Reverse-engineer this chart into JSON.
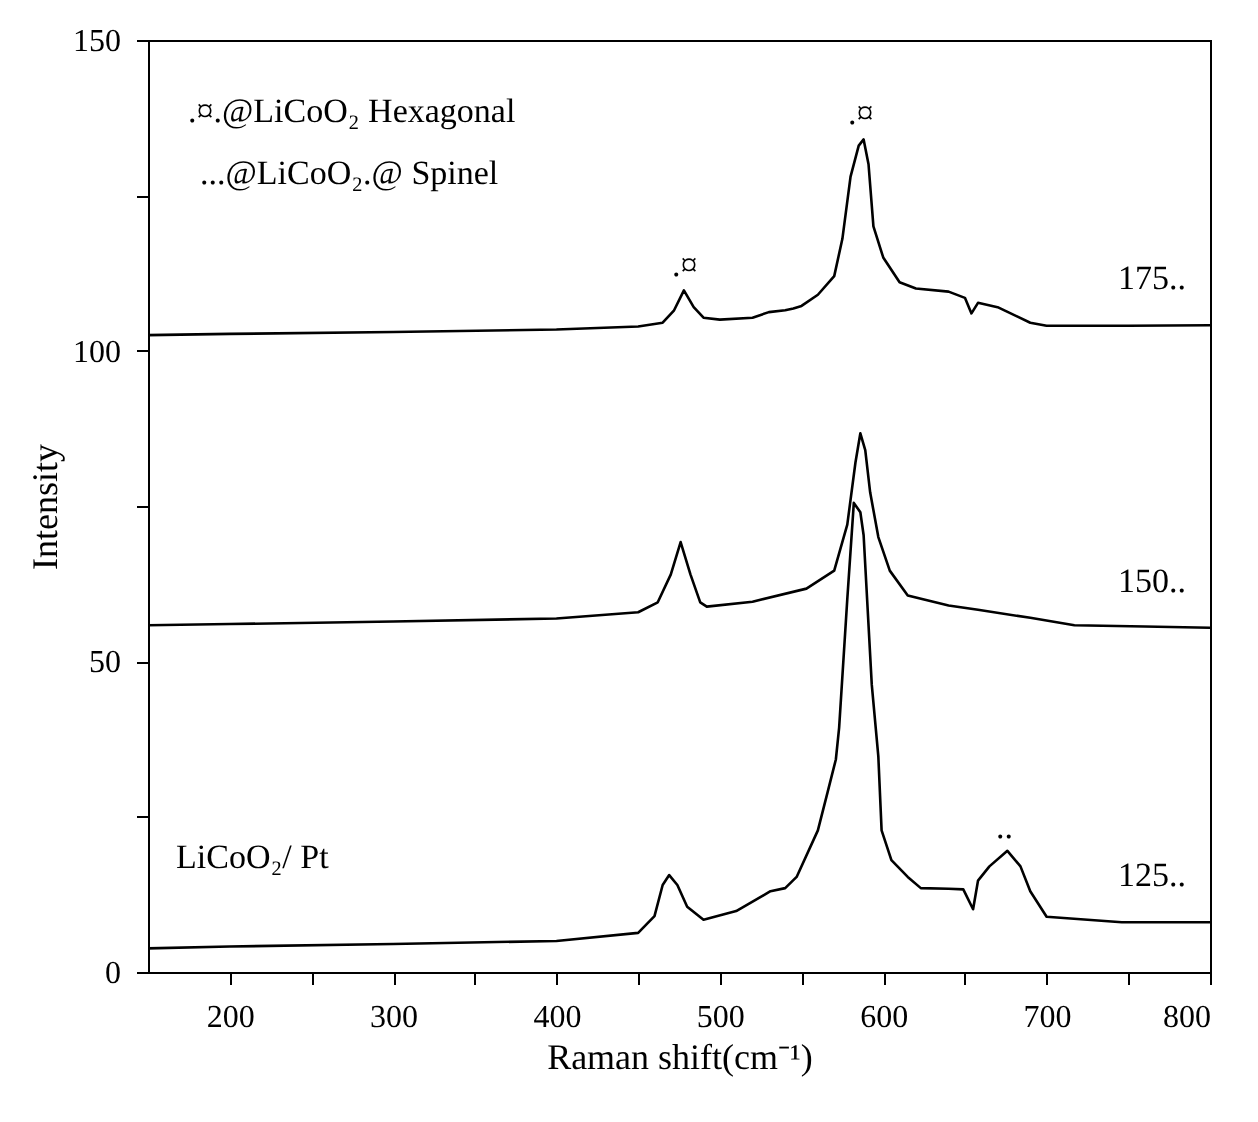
{
  "chart_data": {
    "type": "line",
    "xlabel": "Raman shift(cm⁻¹)",
    "ylabel": "Intensity",
    "xlim": [
      150,
      800
    ],
    "ylim": [
      0,
      150
    ],
    "xticks": [
      200,
      {
        "value": 250,
        "label": null
      },
      300,
      {
        "value": 350,
        "label": null
      },
      400,
      {
        "value": 450,
        "label": null
      },
      500,
      {
        "value": 550,
        "label": null
      },
      600,
      {
        "value": 650,
        "label": null
      },
      700,
      {
        "value": 750,
        "label": null
      },
      800
    ],
    "yticks": [
      0,
      {
        "value": 25,
        "label": null
      },
      50,
      {
        "value": 75,
        "label": null
      },
      100,
      {
        "value": 125,
        "label": null
      },
      150
    ],
    "series": [
      {
        "name": "175..",
        "color": "#000000",
        "x": [
          150,
          200,
          300,
          400,
          450,
          465,
          472,
          478,
          484,
          490,
          500,
          520,
          530,
          540,
          545,
          550,
          560,
          570,
          575,
          580,
          585,
          588,
          591,
          594,
          600,
          610,
          620,
          640,
          650,
          654,
          658,
          670,
          690,
          700,
          750,
          800
        ],
        "values": [
          102.5,
          102.7,
          103,
          103.4,
          103.9,
          104.5,
          106.5,
          109.7,
          107,
          105.3,
          105,
          105.3,
          106.2,
          106.5,
          106.8,
          107.2,
          109,
          112,
          118,
          128,
          133,
          134,
          130,
          120,
          115,
          111,
          110,
          109.5,
          108.5,
          106,
          107.7,
          107,
          104.5,
          104,
          104,
          104.1
        ]
      },
      {
        "name": "150..",
        "color": "#000000",
        "x": [
          150,
          200,
          300,
          400,
          450,
          462,
          470,
          476,
          482,
          488,
          492,
          520,
          553,
          570,
          578,
          583,
          586,
          589,
          592,
          597,
          604,
          615,
          640,
          658,
          690,
          717,
          760,
          800
        ],
        "values": [
          55.8,
          56,
          56.4,
          56.9,
          57.9,
          59.5,
          64,
          69.2,
          64,
          59.5,
          58.8,
          59.6,
          61.7,
          64.6,
          72,
          82,
          86.7,
          84,
          77.2,
          70,
          64.6,
          60.6,
          59,
          58.3,
          57,
          55.8,
          55.6,
          55.4
        ]
      },
      {
        "name": "125..",
        "color": "#000000",
        "x": [
          150,
          200,
          300,
          400,
          450,
          460,
          465,
          469,
          474,
          480,
          490,
          510,
          531,
          540,
          547,
          560,
          566,
          571,
          573,
          578,
          582,
          586,
          588,
          593,
          597,
          599,
          605,
          615,
          623,
          640,
          649,
          655,
          658,
          665,
          676,
          684,
          690,
          700,
          746,
          800
        ],
        "values": [
          3.8,
          4.1,
          4.5,
          5,
          6.3,
          9,
          14,
          15.6,
          14,
          10.5,
          8.4,
          9.8,
          13,
          13.5,
          15.3,
          22.8,
          29,
          34.2,
          39.3,
          60,
          75.5,
          74,
          70.3,
          46.2,
          34.7,
          22.8,
          18,
          15.3,
          13.5,
          13.4,
          13.3,
          10.1,
          14.7,
          17,
          19.5,
          17,
          13,
          8.9,
          8,
          8
        ]
      }
    ],
    "annotations": [
      ".¤.@LiCoO₂ Hexagonal",
      "...@LiCoO₂.@ Spinel",
      "LiCoO₂/ Pt",
      ".¤",
      ".¤",
      ".."
    ]
  }
}
